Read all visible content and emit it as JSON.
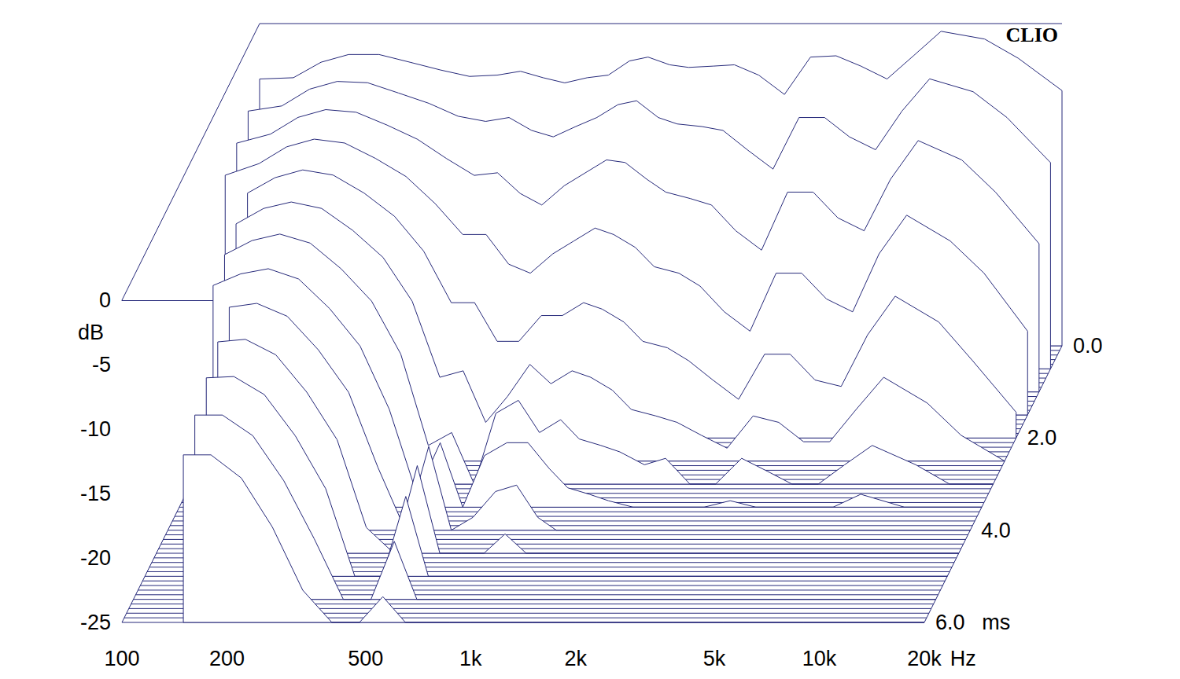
{
  "chart_data": {
    "type": "waterfall",
    "color": "#26297a",
    "log": "x",
    "grid": false,
    "annotations": [
      "CLIO"
    ],
    "x_label": "Hz",
    "y_label": "dB",
    "z_label": "ms",
    "xlim": [
      100,
      20000
    ],
    "xticks": [
      100,
      200,
      500,
      {
        "value": 1000,
        "label": "1k"
      },
      {
        "value": 2000,
        "label": "2k"
      },
      {
        "value": 5000,
        "label": "5k"
      },
      {
        "value": 10000,
        "label": "10k"
      },
      {
        "value": 20000,
        "label": "20k"
      }
    ],
    "ylim": [
      -25,
      0
    ],
    "yticks": [
      -25,
      -20,
      -15,
      -10,
      -5,
      0
    ],
    "zlim": [
      0,
      6
    ],
    "zticks": [
      {
        "value": 0,
        "label": "0.0"
      },
      {
        "value": 2,
        "label": "2.0"
      },
      {
        "value": 4,
        "label": "4.0"
      },
      {
        "value": 6,
        "label": "6.0"
      }
    ],
    "x": [
      100,
      125,
      150,
      180,
      220,
      270,
      330,
      400,
      480,
      560,
      650,
      750,
      870,
      1000,
      1150,
      1300,
      1500,
      1700,
      2000,
      2300,
      2700,
      3200,
      3800,
      4500,
      5300,
      6300,
      7500,
      9000,
      12000,
      15000,
      20000
    ],
    "slices": [
      {
        "t": 0,
        "values": [
          -4.3,
          -4.2,
          -3.0,
          -2.4,
          -2.4,
          -3.0,
          -3.6,
          -4.1,
          -4.0,
          -3.7,
          -4.2,
          -4.6,
          -4.2,
          -4.0,
          -2.9,
          -2.6,
          -3.2,
          -3.4,
          -3.3,
          -3.2,
          -4.0,
          -5.5,
          -2.6,
          -2.5,
          -3.3,
          -4.3,
          -2.5,
          -0.6,
          -1.2,
          -2.7,
          -5.2
        ]
      },
      {
        "t": 0.5,
        "values": [
          -5.0,
          -4.6,
          -3.3,
          -2.7,
          -2.8,
          -3.6,
          -4.4,
          -5.4,
          -5.8,
          -5.5,
          -6.5,
          -7.0,
          -6.2,
          -5.5,
          -4.5,
          -4.2,
          -5.5,
          -6.0,
          -6.2,
          -6.5,
          -8.0,
          -9.5,
          -5.5,
          -5.5,
          -7.0,
          -8.0,
          -5.0,
          -2.5,
          -3.5,
          -5.5,
          -9.0
        ]
      },
      {
        "t": 1,
        "values": [
          -5.7,
          -5.0,
          -3.7,
          -3.1,
          -3.3,
          -4.3,
          -5.4,
          -6.9,
          -8.2,
          -8.0,
          -9.6,
          -10.5,
          -9.0,
          -8.0,
          -7.0,
          -7.2,
          -8.5,
          -9.5,
          -10.0,
          -10.5,
          -12.5,
          -14.0,
          -9.5,
          -9.5,
          -11.5,
          -12.5,
          -8.5,
          -5.5,
          -7.0,
          -9.5,
          -13.5
        ]
      },
      {
        "t": 1.5,
        "values": [
          -6.4,
          -5.5,
          -4.2,
          -3.6,
          -3.9,
          -5.1,
          -6.5,
          -8.6,
          -11.0,
          -11.0,
          -13.3,
          -14.0,
          -12.5,
          -11.5,
          -10.5,
          -11.0,
          -12.0,
          -13.5,
          -14.0,
          -15.0,
          -17.0,
          -18.5,
          -14.0,
          -14.0,
          -16.0,
          -17.0,
          -12.5,
          -9.5,
          -11.5,
          -14.0,
          -18.5
        ]
      },
      {
        "t": 2,
        "values": [
          null,
          -6.0,
          -4.8,
          -4.2,
          -4.6,
          -6.0,
          -7.8,
          -10.5,
          -14.5,
          -14.5,
          -17.5,
          -17.5,
          -15.5,
          -15.5,
          -14.5,
          -15.0,
          -16.0,
          -17.5,
          -18.0,
          -19.0,
          -20.5,
          -22.0,
          -18.5,
          -18.5,
          -20.5,
          -21.0,
          -17.0,
          -14.0,
          -16.0,
          -19.0,
          -23.0
        ]
      },
      {
        "t": 2.5,
        "values": [
          null,
          -6.6,
          -5.4,
          -4.9,
          -5.4,
          -7.1,
          -9.2,
          -12.6,
          -18.5,
          -18.0,
          -22.0,
          -20.0,
          -17.5,
          -19.0,
          -18.0,
          -18.5,
          -19.5,
          -21.0,
          -21.5,
          -22.0,
          -23.0,
          -24.0,
          -21.5,
          -22.0,
          -23.5,
          -23.5,
          -21.0,
          -18.5,
          -20.5,
          -23.0,
          -25
        ]
      },
      {
        "t": 3,
        "values": [
          null,
          -7.2,
          -6.1,
          -5.6,
          -6.3,
          -8.3,
          -10.8,
          -14.9,
          -22.0,
          -21.0,
          -25,
          -19.5,
          -18.5,
          -21.0,
          -20.0,
          -21.5,
          -22.0,
          -22.5,
          -23.5,
          -23.0,
          -25,
          -25,
          -23.0,
          -24.0,
          -25,
          -25,
          -23.5,
          -22.0,
          -23.5,
          -25,
          -25
        ]
      },
      {
        "t": 3.5,
        "values": [
          null,
          -7.8,
          -6.9,
          -6.5,
          -7.3,
          -9.6,
          -12.5,
          -17.4,
          -24.0,
          -20.0,
          -25,
          -21.0,
          -20.0,
          -20.0,
          -22.0,
          -23.5,
          -24.0,
          -24.5,
          -25,
          -25,
          -25,
          -25,
          -24.5,
          -25,
          -25,
          -25,
          -25,
          -24.0,
          -25,
          -25,
          -25
        ]
      },
      {
        "t": 4,
        "values": [
          null,
          null,
          -7.7,
          -7.4,
          -8.4,
          -11.0,
          -14.3,
          -20.1,
          -25,
          -18.5,
          -25,
          -24.0,
          -22.0,
          -21.5,
          -24.0,
          -25,
          -25,
          -25,
          -25,
          -25,
          -25,
          -25,
          -25,
          -25,
          -25,
          -25,
          -25,
          -25,
          -25,
          -25,
          -25
        ]
      },
      {
        "t": 4.5,
        "values": [
          null,
          null,
          -8.6,
          -8.4,
          -9.6,
          -12.5,
          -16.2,
          -23.0,
          -25,
          -18.2,
          -25,
          -25,
          -25,
          -23.5,
          -25,
          -25,
          -25,
          -25,
          -25,
          -25,
          -25,
          -25,
          -25,
          -25,
          -25,
          -25,
          -25,
          -25,
          -25,
          -25,
          -25
        ]
      },
      {
        "t": 5,
        "values": [
          null,
          null,
          -9.6,
          -9.5,
          -10.9,
          -14.1,
          -18.2,
          -25,
          -25,
          -18.8,
          -25,
          -25,
          -25,
          -25,
          -25,
          -25,
          -25,
          -25,
          -25,
          -25,
          -25,
          -25,
          -25,
          -25,
          -25,
          -25,
          -25,
          -25,
          -25,
          -25,
          -25
        ]
      },
      {
        "t": 5.5,
        "values": [
          null,
          null,
          -10.7,
          -10.7,
          -12.3,
          -15.8,
          -20.3,
          -25,
          -25,
          -20.5,
          -25,
          -25,
          -25,
          -25,
          -25,
          -25,
          -25,
          -25,
          -25,
          -25,
          -25,
          -25,
          -25,
          -25,
          -25,
          -25,
          -25,
          -25,
          -25,
          -25,
          -25
        ]
      },
      {
        "t": 6,
        "values": [
          null,
          null,
          -12.0,
          -12.0,
          -13.8,
          -17.6,
          -22.5,
          -25,
          -25,
          -23.0,
          -25,
          -25,
          -25,
          -25,
          -25,
          -25,
          -25,
          -25,
          -25,
          -25,
          -25,
          -25,
          -25,
          -25,
          -25,
          -25,
          -25,
          -25,
          -25,
          -25,
          -25
        ]
      }
    ]
  }
}
